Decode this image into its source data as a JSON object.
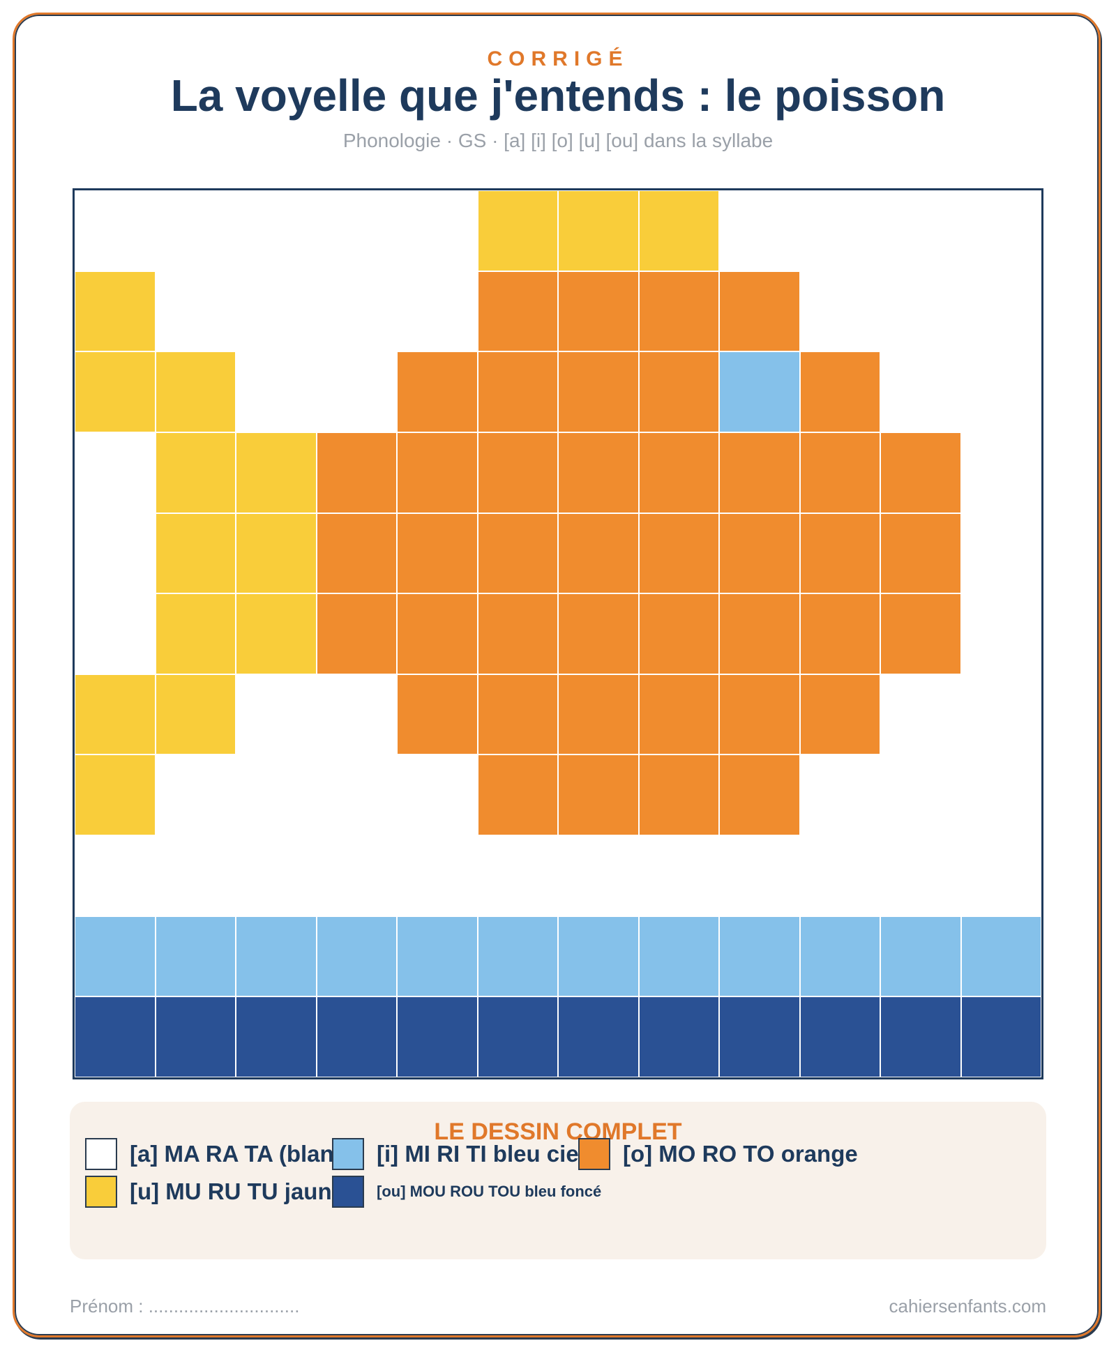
{
  "header": {
    "kicker": "CORRIGÉ",
    "title": "La voyelle que j'entends : le poisson",
    "subtitle": "Phonologie · GS · [a] [i] [o] [u] [ou] dans la syllabe"
  },
  "colors": {
    "a": "#ffffff",
    "i": "#85c1ea",
    "o": "#f08c2e",
    "u": "#f9cd3a",
    "ou": "#2a5194"
  },
  "grid": {
    "rows": [
      [
        "a",
        "a",
        "a",
        "a",
        "a",
        "u",
        "u",
        "u",
        "a",
        "a",
        "a",
        "a"
      ],
      [
        "u",
        "a",
        "a",
        "a",
        "a",
        "o",
        "o",
        "o",
        "o",
        "a",
        "a",
        "a"
      ],
      [
        "u",
        "u",
        "a",
        "a",
        "o",
        "o",
        "o",
        "o",
        "i",
        "o",
        "a",
        "a"
      ],
      [
        "a",
        "u",
        "u",
        "o",
        "o",
        "o",
        "o",
        "o",
        "o",
        "o",
        "o",
        "a"
      ],
      [
        "a",
        "u",
        "u",
        "o",
        "o",
        "o",
        "o",
        "o",
        "o",
        "o",
        "o",
        "a"
      ],
      [
        "a",
        "u",
        "u",
        "o",
        "o",
        "o",
        "o",
        "o",
        "o",
        "o",
        "o",
        "a"
      ],
      [
        "u",
        "u",
        "a",
        "a",
        "o",
        "o",
        "o",
        "o",
        "o",
        "o",
        "a",
        "a"
      ],
      [
        "u",
        "a",
        "a",
        "a",
        "a",
        "o",
        "o",
        "o",
        "o",
        "a",
        "a",
        "a"
      ],
      [
        "a",
        "a",
        "a",
        "a",
        "a",
        "a",
        "a",
        "a",
        "a",
        "a",
        "a",
        "a"
      ],
      [
        "i",
        "i",
        "i",
        "i",
        "i",
        "i",
        "i",
        "i",
        "i",
        "i",
        "i",
        "i"
      ],
      [
        "ou",
        "ou",
        "ou",
        "ou",
        "ou",
        "ou",
        "ou",
        "ou",
        "ou",
        "ou",
        "ou",
        "ou"
      ]
    ]
  },
  "legend": {
    "title": "LE DESSIN COMPLET",
    "items": [
      {
        "key": "a",
        "label": "[a] MA RA TA  (blanc)"
      },
      {
        "key": "i",
        "label": "[i] MI RI TI  bleu ciel"
      },
      {
        "key": "o",
        "label": "[o] MO RO TO  orange"
      },
      {
        "key": "u",
        "label": "[u] MU RU TU  jaune"
      },
      {
        "key": "ou",
        "label": "[ou] MOU ROU TOU  bleu foncé"
      }
    ]
  },
  "footer": {
    "name_field": "Prénom : ..............................",
    "site": "cahiersenfants.com"
  }
}
